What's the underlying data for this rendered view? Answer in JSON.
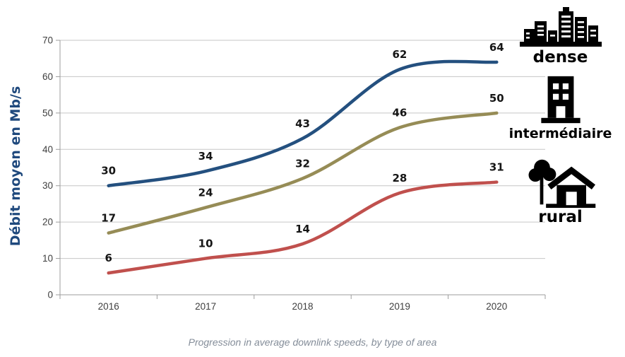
{
  "chart_data": {
    "type": "line",
    "x": [
      "2016",
      "2017",
      "2018",
      "2019",
      "2020"
    ],
    "series": [
      {
        "name": "dense",
        "icon": "city-skyline-icon",
        "color": "#24507F",
        "values": [
          30,
          34,
          43,
          62,
          64
        ]
      },
      {
        "name": "intermédiaire",
        "icon": "apartment-building-icon",
        "color": "#968C56",
        "values": [
          17,
          24,
          32,
          46,
          50
        ]
      },
      {
        "name": "rural",
        "icon": "house-and-tree-icon",
        "color": "#C0504D",
        "values": [
          6,
          10,
          14,
          28,
          31
        ]
      }
    ],
    "ylabel": "Débit moyen en Mb/s",
    "xlabel": "",
    "ylim": [
      0,
      70
    ],
    "yticks": [
      0,
      10,
      20,
      30,
      40,
      50,
      60,
      70
    ],
    "grid": true,
    "data_labels": true,
    "legend_position": "right"
  },
  "colors": {
    "ylabel": "#1F497D",
    "grid": "#C6C6C6",
    "axis": "#9C9C9C",
    "tick_text": "#3F3F3F",
    "data_label_text": "#161616",
    "legend_text": "#000000",
    "icon": "#000000",
    "caption_text": "#848D99",
    "background": "#FFFFFF"
  },
  "caption": {
    "text": "Progression in average downlink speeds, by type of area"
  }
}
